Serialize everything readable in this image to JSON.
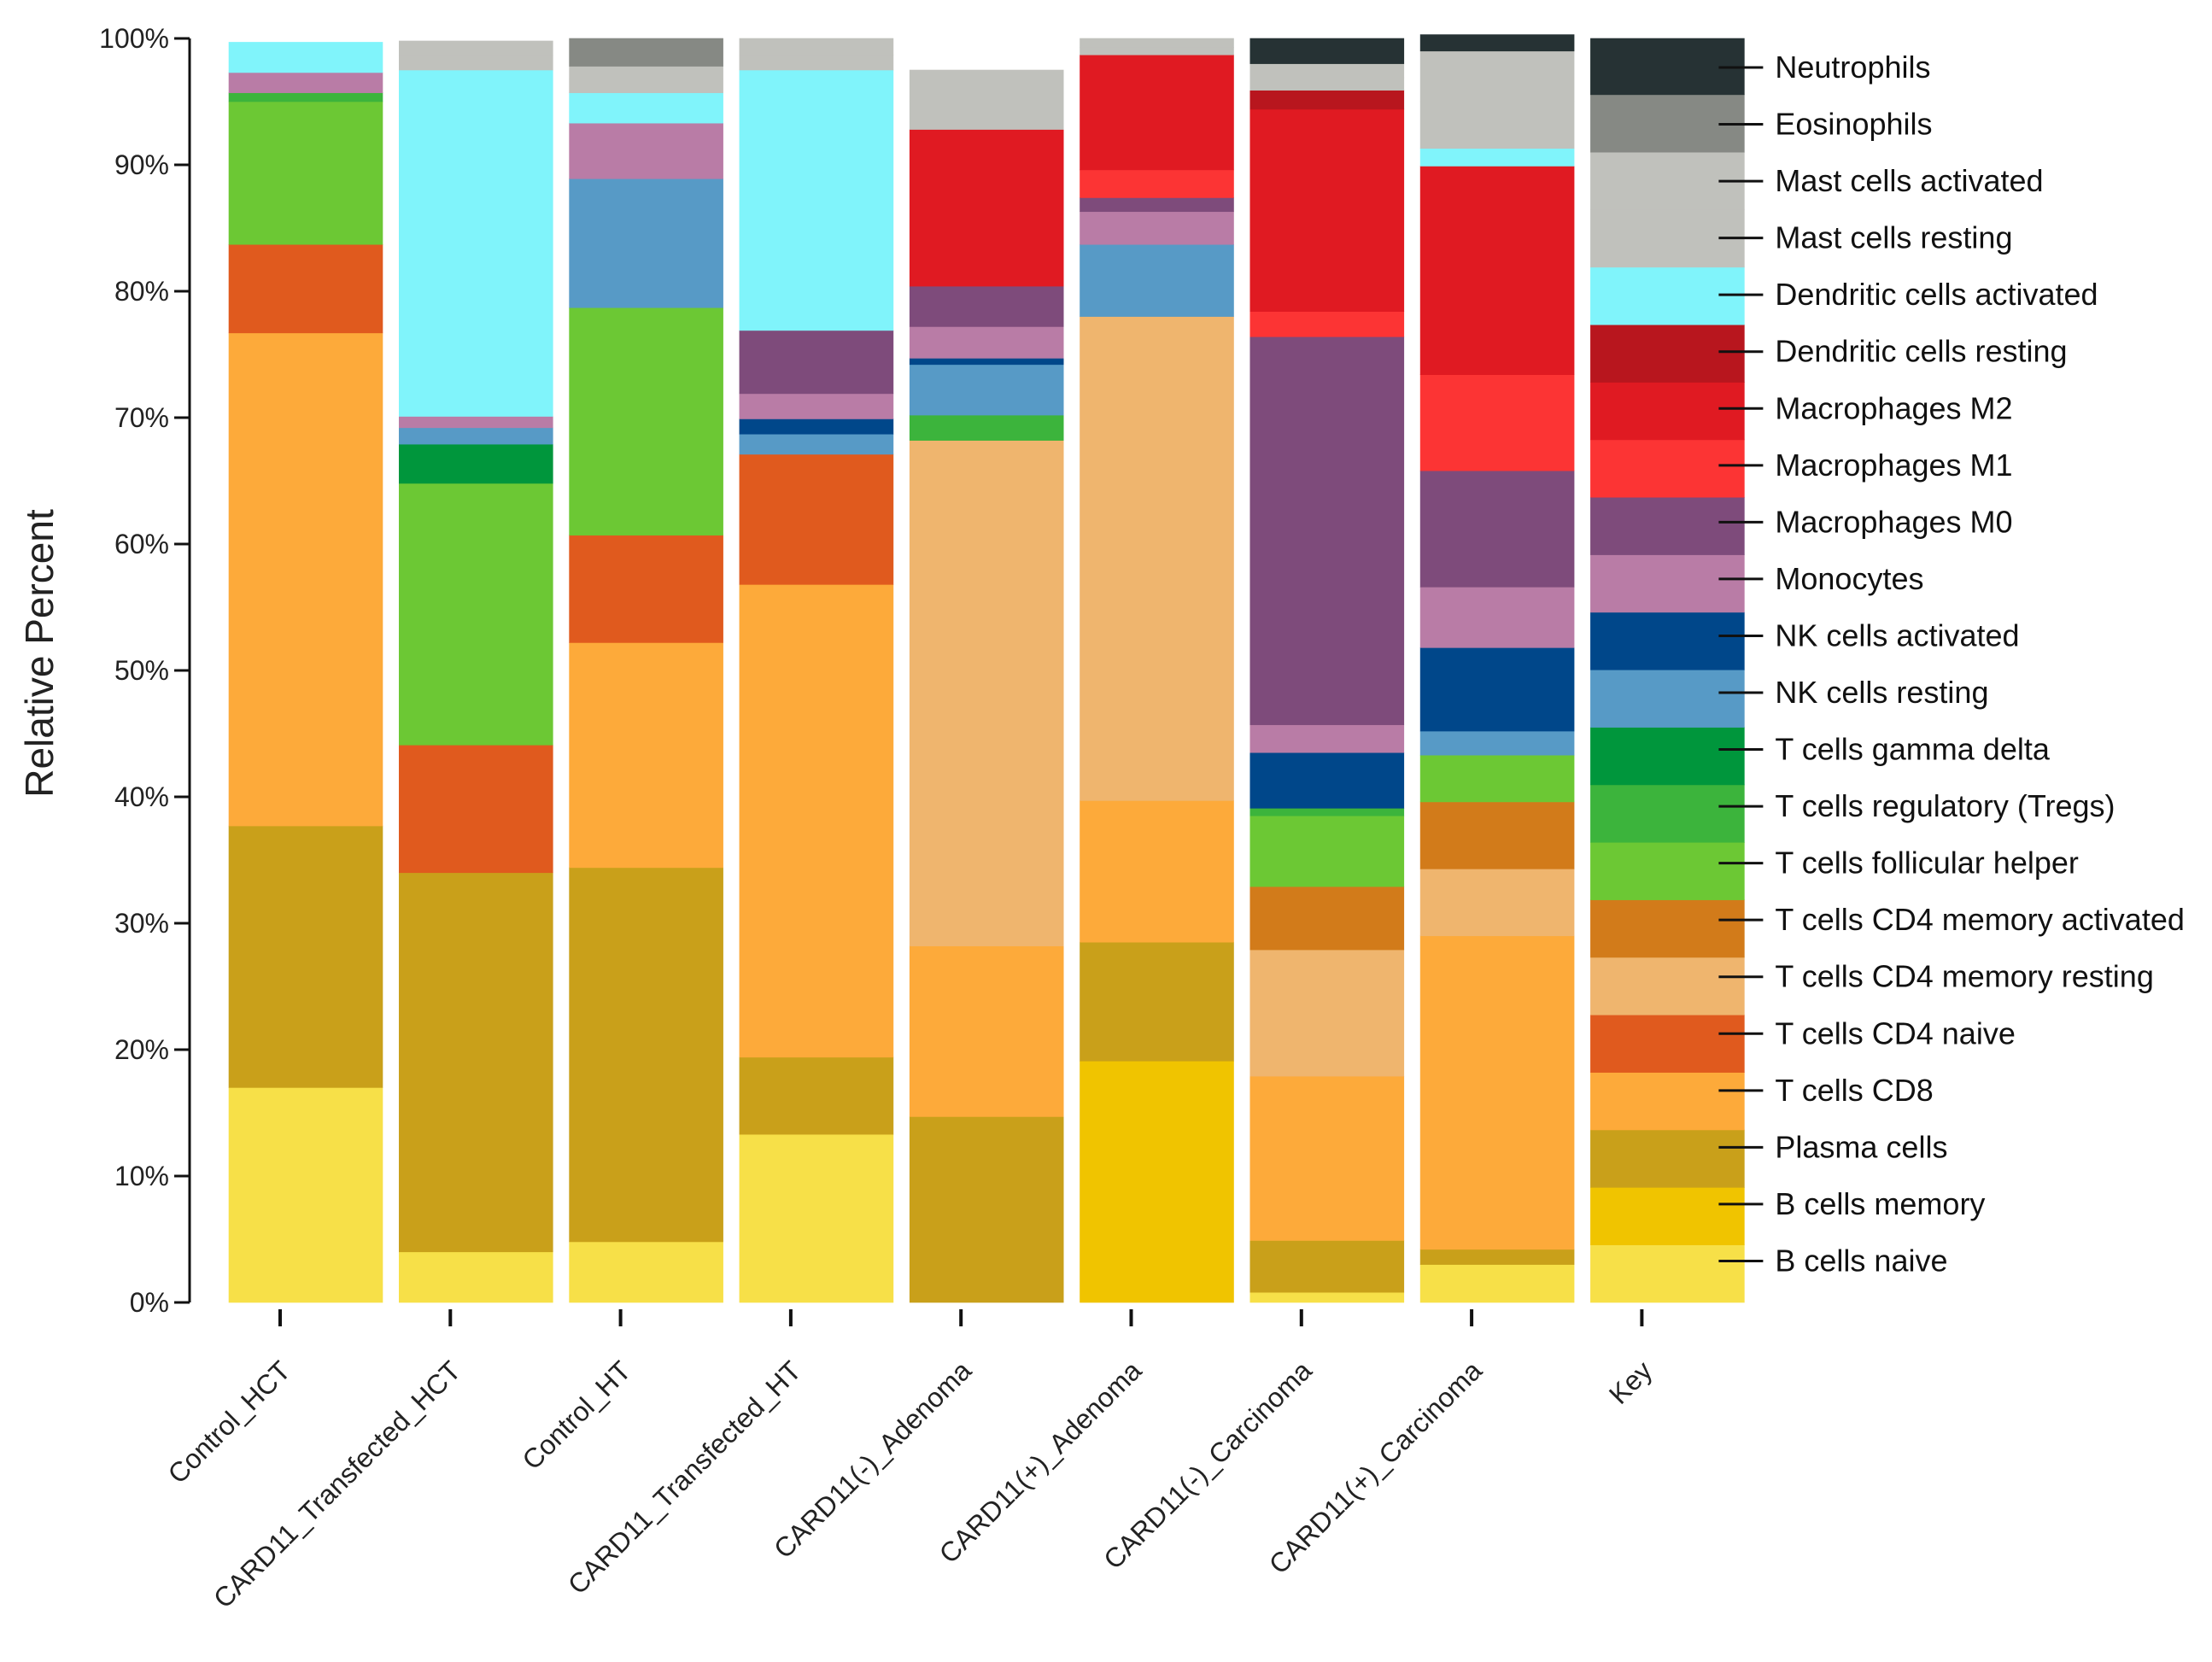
{
  "chart_data": {
    "type": "stacked-bar",
    "ylabel": "Relative Percent",
    "ylim": [
      0,
      100
    ],
    "yticks": [
      "0%",
      "10%",
      "20%",
      "30%",
      "40%",
      "50%",
      "60%",
      "70%",
      "80%",
      "90%",
      "100%"
    ],
    "categories": [
      "Control_HCT",
      "CARD11_Transfected_HCT",
      "Control_HT",
      "CARD11_Transfected_HT",
      "CARD11(-)_Adenoma",
      "CARD11(+)_Adenoma",
      "CARD11(-)_Carcinoma",
      "CARD11(+)_Carcinoma",
      "Key"
    ],
    "series_bottom_to_top": [
      {
        "name": "B cells naive",
        "color": "#f7e048"
      },
      {
        "name": "B cells memory",
        "color": "#f0c400"
      },
      {
        "name": "Plasma cells",
        "color": "#c9a01a"
      },
      {
        "name": "T cells CD8",
        "color": "#fdaa3a"
      },
      {
        "name": "T cells CD4 naive",
        "color": "#e05a1e"
      },
      {
        "name": "T cells CD4 memory resting",
        "color": "#efb56e"
      },
      {
        "name": "T cells CD4 memory activated",
        "color": "#d27b1a"
      },
      {
        "name": "T cells follicular helper",
        "color": "#6cc834"
      },
      {
        "name": "T cells regulatory (Tregs)",
        "color": "#3cb43c"
      },
      {
        "name": "T cells gamma delta",
        "color": "#00963c"
      },
      {
        "name": "NK cells resting",
        "color": "#579ac6"
      },
      {
        "name": "NK cells activated",
        "color": "#00478a"
      },
      {
        "name": "Monocytes",
        "color": "#b97ca6"
      },
      {
        "name": "Macrophages M0",
        "color": "#7e4b7b"
      },
      {
        "name": "Macrophages M1",
        "color": "#fc3434"
      },
      {
        "name": "Macrophages M2",
        "color": "#e01a22"
      },
      {
        "name": "Dendritic cells resting",
        "color": "#b8161e"
      },
      {
        "name": "Dendritic cells activated",
        "color": "#80f4fb"
      },
      {
        "name": "Mast cells resting",
        "color": "#c0c1bc"
      },
      {
        "name": "Mast cells activated",
        "color": "#c0c1bc"
      },
      {
        "name": "Eosinophils",
        "color": "#868984"
      },
      {
        "name": "Neutrophils",
        "color": "#263234"
      }
    ],
    "values": {
      "Control_HCT": [
        17,
        0,
        20.7,
        39,
        7,
        0,
        0,
        11.3,
        0.7,
        0,
        0,
        0,
        1.6,
        0,
        0,
        0,
        0,
        2.4,
        0,
        0,
        0,
        0
      ],
      "CARD11_Transfected_HCT": [
        4,
        0,
        30,
        0,
        10.1,
        0,
        0,
        20.7,
        0,
        3.1,
        1.3,
        0,
        0.9,
        0,
        0,
        0,
        0,
        27.4,
        1.2,
        1.1,
        0,
        0
      ],
      "Control_HT": [
        4.8,
        0,
        29.6,
        17.8,
        8.5,
        0,
        0,
        18,
        0,
        0,
        10.2,
        0,
        4.4,
        0,
        0,
        0,
        0,
        2.4,
        1.1,
        1,
        2.2,
        0
      ],
      "CARD11_Transfected_HT": [
        13.3,
        0,
        6.1,
        37.4,
        10.3,
        0,
        0,
        0,
        0,
        0,
        1.6,
        1.2,
        2,
        5,
        0,
        0,
        0,
        20.6,
        1.2,
        1.3,
        0,
        0
      ],
      "CARD11(-)_Adenoma": [
        0,
        0,
        14.7,
        13.5,
        0,
        40,
        0,
        0,
        2,
        0,
        4,
        0.5,
        2.5,
        3.2,
        0,
        12.4,
        0,
        0,
        2.2,
        2.5,
        0,
        0
      ],
      "CARD11(+)_Adenoma": [
        0,
        19.1,
        9.4,
        11.2,
        0,
        38.3,
        0,
        0,
        0,
        0,
        5.7,
        0,
        2.6,
        1.1,
        2.2,
        9.1,
        0,
        0,
        0.6,
        0.7,
        0,
        0
      ],
      "CARD11(-)_Carcinoma": [
        0.8,
        0,
        4.1,
        13,
        0,
        10,
        5,
        5.6,
        0.6,
        0,
        0,
        4.4,
        2.2,
        30.7,
        2,
        16,
        1.5,
        0,
        1,
        1.1,
        0,
        2
      ],
      "CARD11(+)_Carcinoma": [
        3,
        0,
        1.2,
        24.8,
        0,
        5.3,
        5.3,
        3.7,
        0,
        0,
        1.9,
        6.6,
        4.8,
        9.2,
        7.6,
        16.5,
        0,
        1.4,
        3.7,
        4,
        0,
        1.3
      ],
      "Key": [
        4.55,
        4.55,
        4.55,
        4.55,
        4.55,
        4.55,
        4.55,
        4.55,
        4.55,
        4.55,
        4.55,
        4.55,
        4.55,
        4.55,
        4.55,
        4.55,
        4.55,
        4.55,
        4.55,
        4.55,
        4.55,
        4.45
      ]
    },
    "legend_top_to_bottom": [
      "Neutrophils",
      "Eosinophils",
      "Mast cells activated",
      "Mast cells resting",
      "Dendritic cells activated",
      "Dendritic cells resting",
      "Macrophages M2",
      "Macrophages M1",
      "Macrophages M0",
      "Monocytes",
      "NK cells activated",
      "NK cells resting",
      "T cells gamma delta",
      "T cells regulatory (Tregs)",
      "T cells follicular helper",
      "T cells CD4 memory activated",
      "T cells CD4 memory resting",
      "T cells CD4 naive",
      "T cells CD8",
      "Plasma cells",
      "B cells memory",
      "B cells naive"
    ],
    "legend_placement": "right, aligned with Key column"
  }
}
